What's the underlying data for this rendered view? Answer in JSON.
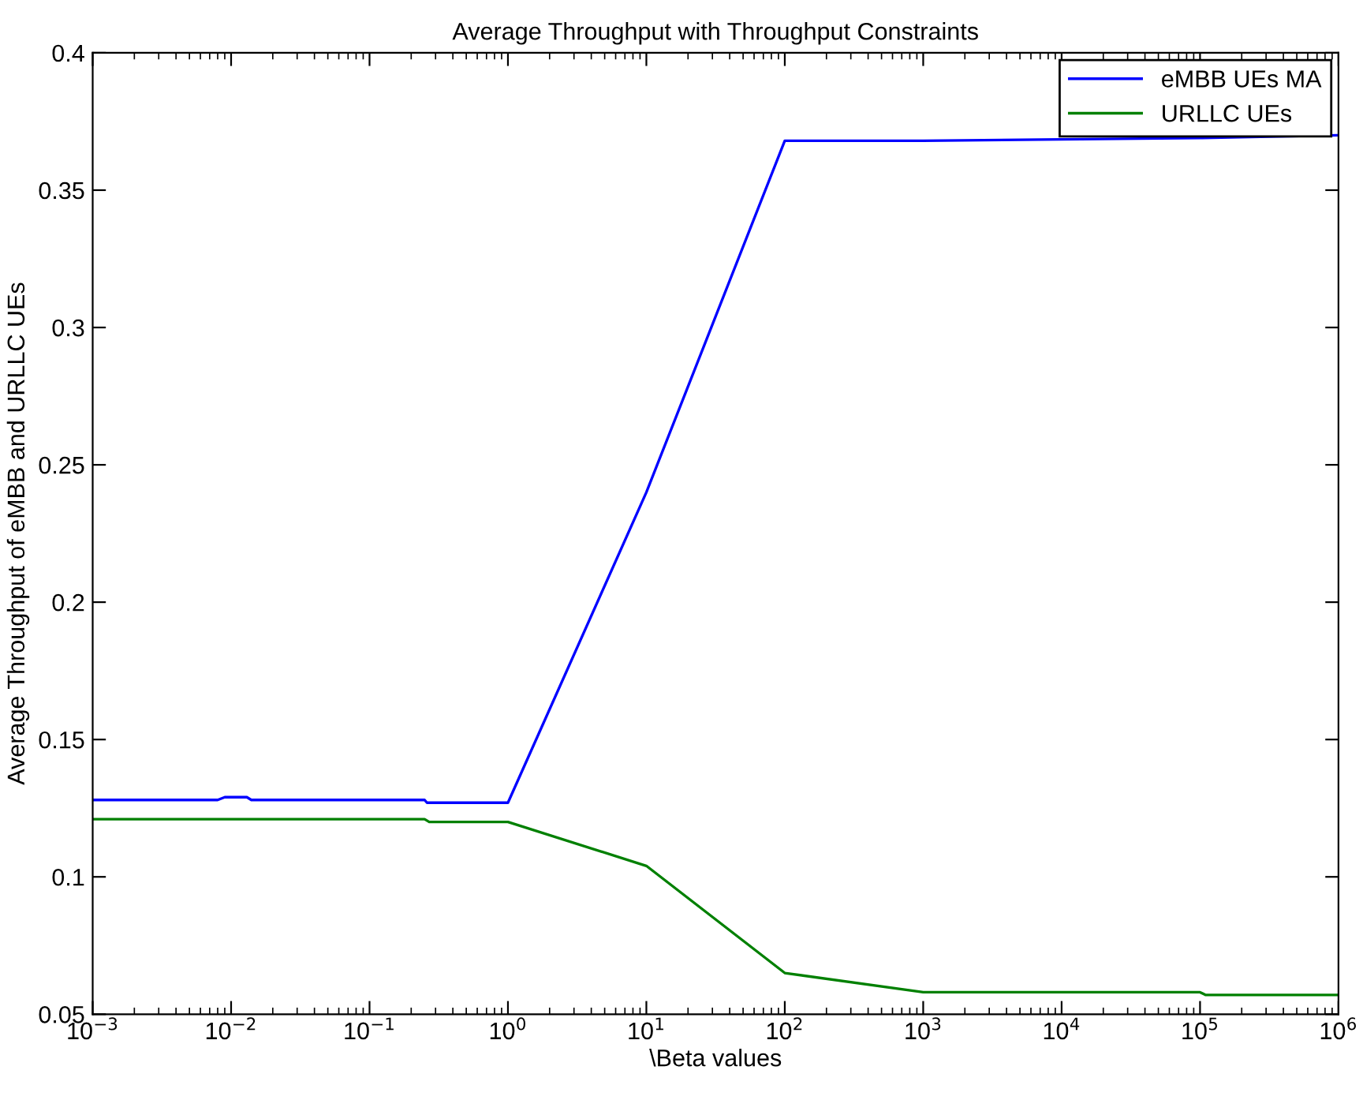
{
  "chart_data": {
    "type": "line",
    "title": "Average Throughput with Throughput Constraints",
    "xlabel": "\\Beta values",
    "ylabel": "Average Throughput of eMBB and URLLC UEs",
    "log": "x",
    "xlim": [
      0.001,
      1000000
    ],
    "ylim": [
      0.05,
      0.4
    ],
    "xticks": [
      {
        "value": 0.001,
        "label": "10$^{−3}$"
      },
      {
        "value": 0.01,
        "label": "10$^{−2}$"
      },
      {
        "value": 0.1,
        "label": "10$^{−1}$"
      },
      {
        "value": 1,
        "label": "10$^{0}$"
      },
      {
        "value": 10,
        "label": "10$^{1}$"
      },
      {
        "value": 100,
        "label": "10$^{2}$"
      },
      {
        "value": 1000,
        "label": "10$^{3}$"
      },
      {
        "value": 10000,
        "label": "10$^{4}$"
      },
      {
        "value": 100000,
        "label": "10$^{5}$"
      },
      {
        "value": 1000000,
        "label": "10$^{6}$"
      }
    ],
    "yticks": [
      0.05,
      0.1,
      0.15,
      0.2,
      0.25,
      0.3,
      0.35,
      0.4
    ],
    "grid": false,
    "legend": "top right",
    "line_style": "solid",
    "series": [
      {
        "name": "eMBB UEs MA",
        "color": "#0000ff",
        "x": [
          0.001,
          0.008,
          0.009,
          0.013,
          0.014,
          0.25,
          0.26,
          1,
          10,
          100,
          1000,
          100000,
          1000000
        ],
        "values": [
          0.128,
          0.128,
          0.129,
          0.129,
          0.128,
          0.128,
          0.127,
          0.127,
          0.24,
          0.368,
          0.368,
          0.369,
          0.37
        ]
      },
      {
        "name": "URLLC UEs",
        "color": "#008000",
        "x": [
          0.001,
          0.25,
          0.27,
          1,
          10,
          100,
          1000,
          100000,
          110000,
          1000000
        ],
        "values": [
          0.121,
          0.121,
          0.12,
          0.12,
          0.104,
          0.065,
          0.058,
          0.058,
          0.057,
          0.057
        ]
      }
    ]
  }
}
